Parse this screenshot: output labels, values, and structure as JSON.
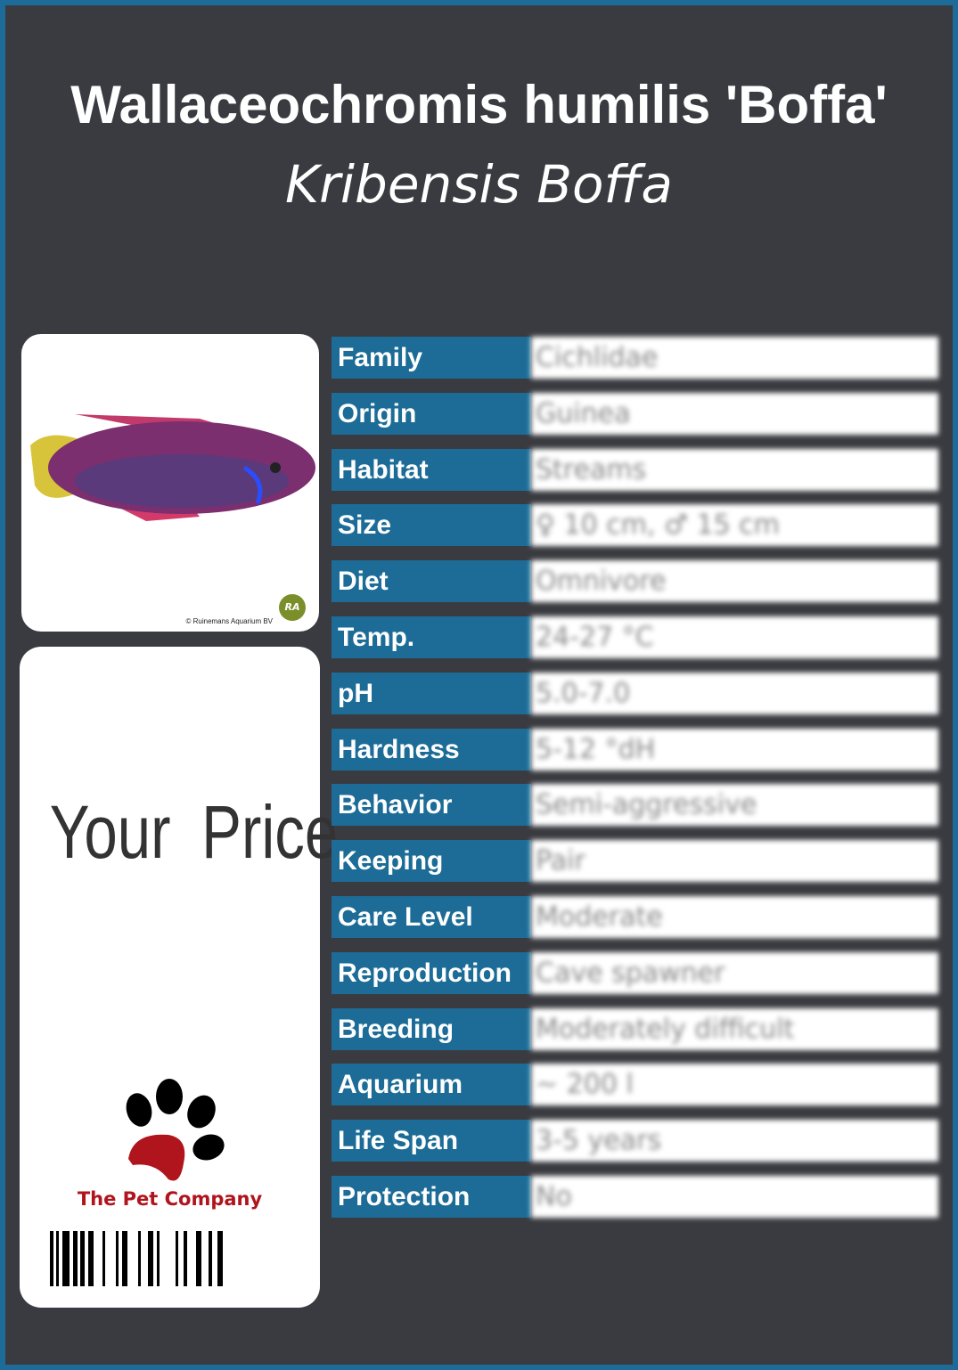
{
  "header": {
    "title": "Wallaceochromis humilis 'Boffa'",
    "subtitle": "Kribensis Boffa"
  },
  "photo": {
    "credit": "© Ruinemans Aquarium BV",
    "logo": "RA"
  },
  "price": {
    "label": "Your Price"
  },
  "brand": {
    "name": "The Pet Company",
    "icon": "paw-icon",
    "color": "#b0141c"
  },
  "colors": {
    "label_bg": "#1c6c97",
    "background": "#3a3b40",
    "border": "#1d6b98"
  },
  "rows": [
    {
      "label": "Family",
      "value": "Cichlidae"
    },
    {
      "label": "Origin",
      "value": "Guinea"
    },
    {
      "label": "Habitat",
      "value": "Streams"
    },
    {
      "label": "Size",
      "value": "♀ 10 cm, ♂ 15 cm"
    },
    {
      "label": "Diet",
      "value": "Omnivore"
    },
    {
      "label": "Temp.",
      "value": "24-27 °C"
    },
    {
      "label": "pH",
      "value": "5.0-7.0"
    },
    {
      "label": "Hardness",
      "value": "5-12 °dH"
    },
    {
      "label": "Behavior",
      "value": "Semi-aggressive"
    },
    {
      "label": "Keeping",
      "value": "Pair"
    },
    {
      "label": "Care Level",
      "value": "Moderate"
    },
    {
      "label": "Reproduction",
      "value": "Cave spawner"
    },
    {
      "label": "Breeding",
      "value": "Moderately difficult"
    },
    {
      "label": "Aquarium",
      "value": "~ 200 l"
    },
    {
      "label": "Life Span",
      "value": "3-5 years"
    },
    {
      "label": "Protection",
      "value": "No"
    }
  ]
}
